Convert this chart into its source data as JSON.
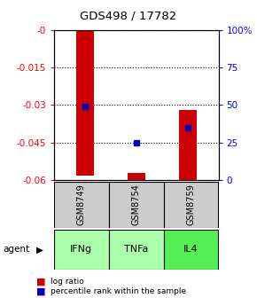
{
  "title": "GDS498 / 17782",
  "samples": [
    "GSM8749",
    "GSM8754",
    "GSM8759"
  ],
  "agents": [
    "IFNg",
    "TNFa",
    "IL4"
  ],
  "bar_tops": [
    0.0,
    -0.057,
    -0.032
  ],
  "bar_bottoms": [
    -0.058,
    -0.06,
    -0.06
  ],
  "percentile_ranks_pct": [
    49,
    25,
    35
  ],
  "ylim_left": [
    -0.06,
    0.0
  ],
  "ylim_right": [
    0,
    100
  ],
  "yticks_left": [
    0.0,
    -0.015,
    -0.03,
    -0.045,
    -0.06
  ],
  "yticks_right": [
    100,
    75,
    50,
    25,
    0
  ],
  "bar_color": "#cc0000",
  "dot_color": "#0000bb",
  "agent_bg_colors": [
    "#aaffaa",
    "#aaffaa",
    "#55ee55"
  ],
  "sample_bg_color": "#cccccc",
  "legend_bar_label": "log ratio",
  "legend_dot_label": "percentile rank within the sample",
  "agent_label": "agent"
}
